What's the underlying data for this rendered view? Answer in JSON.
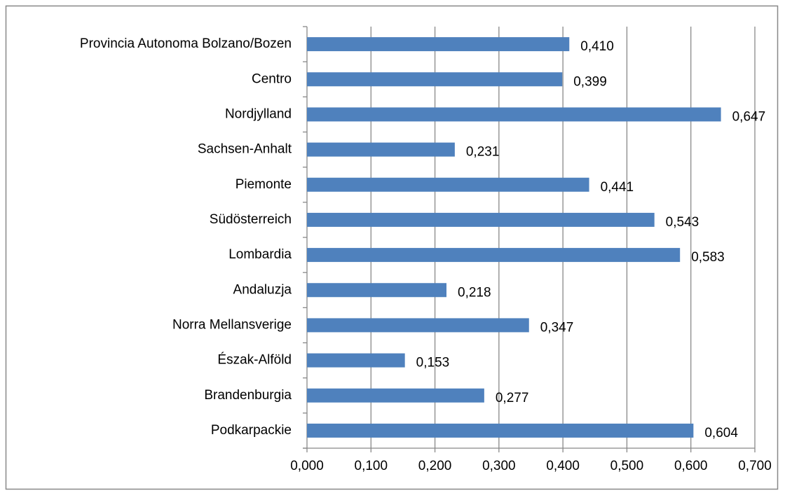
{
  "chart_data": {
    "type": "bar",
    "orientation": "horizontal",
    "categories": [
      "Provincia Autonoma Bolzano/Bozen",
      "Centro",
      "Nordjylland",
      "Sachsen-Anhalt",
      "Piemonte",
      "Südösterreich",
      "Lombardia",
      "Andaluzja",
      "Norra Mellansverige",
      "Észak-Alföld",
      "Brandenburgia",
      "Podkarpackie"
    ],
    "values": [
      0.41,
      0.399,
      0.647,
      0.231,
      0.441,
      0.543,
      0.583,
      0.218,
      0.347,
      0.153,
      0.277,
      0.604
    ],
    "value_labels": [
      "0,410",
      "0,399",
      "0,647",
      "0,231",
      "0,441",
      "0,543",
      "0,583",
      "0,218",
      "0,347",
      "0,153",
      "0,277",
      "0,604"
    ],
    "color": "#4f81bd",
    "xlim": [
      0,
      0.7
    ],
    "xticks": [
      {
        "value": 0,
        "label": "0,000"
      },
      {
        "value": 0.1,
        "label": "0,100"
      },
      {
        "value": 0.2,
        "label": "0,200"
      },
      {
        "value": 0.3,
        "label": "0,300"
      },
      {
        "value": 0.4,
        "label": "0,400"
      },
      {
        "value": 0.5,
        "label": "0,500"
      },
      {
        "value": 0.6,
        "label": "0,600"
      },
      {
        "value": 0.7,
        "label": "0,700"
      }
    ],
    "grid": true
  }
}
